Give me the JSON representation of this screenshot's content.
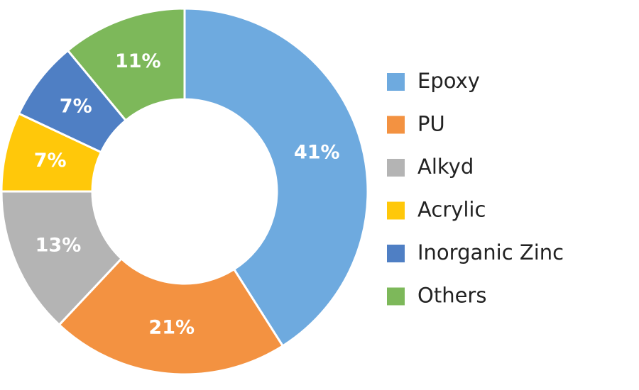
{
  "chart_data": {
    "type": "donut",
    "categories": [
      "Epoxy",
      "PU",
      "Alkyd",
      "Acrylic",
      "Inorganic Zinc",
      "Others"
    ],
    "values": [
      41,
      21,
      13,
      7,
      7,
      11
    ],
    "value_labels": [
      "41%",
      "21%",
      "13%",
      "7%",
      "7%",
      "11%"
    ],
    "colors": [
      "#6eaadf",
      "#f39241",
      "#b4b4b4",
      "#ffc80a",
      "#4f7fc4",
      "#7db85a"
    ],
    "legend": "right"
  }
}
